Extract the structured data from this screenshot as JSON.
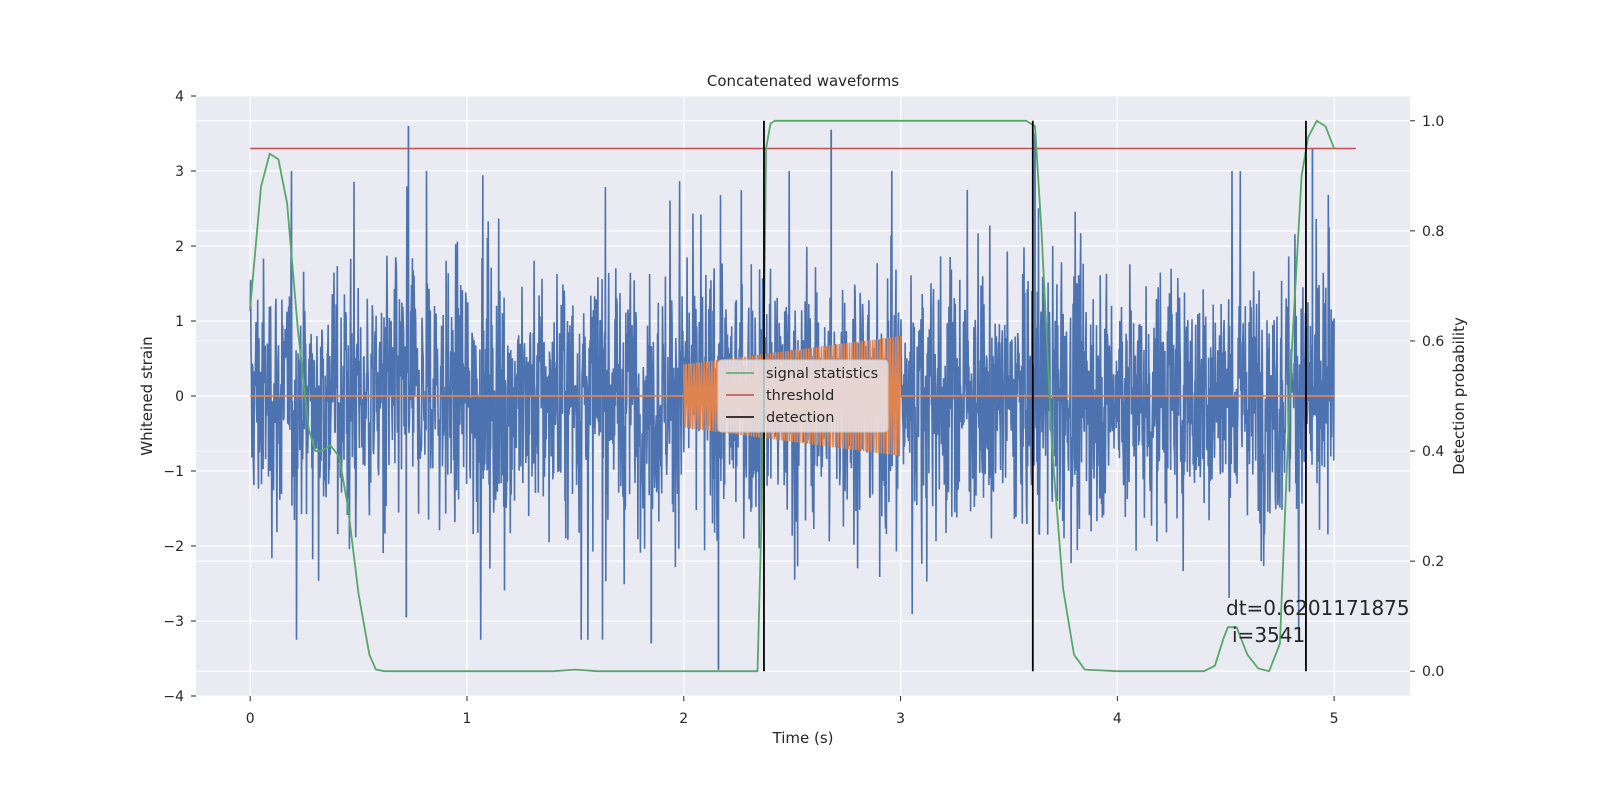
{
  "chart_data": {
    "type": "line",
    "title": "Concatenated waveforms",
    "xlabel": "Time (s)",
    "ylabel_left": "Whitened strain",
    "ylabel_right": "Detection probability",
    "xlim": [
      -0.25,
      5.35
    ],
    "ylim_left": [
      -4,
      4
    ],
    "ylim_right": [
      -0.045,
      1.045
    ],
    "xticks": [
      0,
      1,
      2,
      3,
      4,
      5
    ],
    "yticks_left": [
      -4,
      -3,
      -2,
      -1,
      0,
      1,
      2,
      3,
      4
    ],
    "yticks_right": [
      0.0,
      0.2,
      0.4,
      0.6,
      0.8,
      1.0
    ],
    "xtick_labels": [
      "0",
      "1",
      "2",
      "3",
      "4",
      "5"
    ],
    "yticks_left_labels": [
      "−4",
      "−3",
      "−2",
      "−1",
      "0",
      "1",
      "2",
      "3",
      "4"
    ],
    "yticks_right_labels": [
      "0.0",
      "0.2",
      "0.4",
      "0.6",
      "0.8",
      "1.0"
    ],
    "grid": true,
    "legend_position": "center",
    "colors": {
      "strain": "#4c72b0",
      "injection": "#dd8452",
      "signal_statistics": "#55a868",
      "threshold": "#c44e52",
      "detection": "#000000",
      "axes_bg": "#eaeaf2",
      "grid": "#ffffff"
    },
    "noise": {
      "x_range": [
        0,
        5
      ],
      "amplitude_envelope": [
        -3.65,
        3.6
      ],
      "typical_band": [
        -1.2,
        1.2
      ],
      "peaks": [
        {
          "x": 0.73,
          "y": 3.6
        },
        {
          "x": 2.16,
          "y": -3.65
        },
        {
          "x": 2.68,
          "y": 3.55
        },
        {
          "x": 3.62,
          "y": 3.5
        },
        {
          "x": 4.9,
          "y": 3.3
        },
        {
          "x": 0.72,
          "y": -2.95
        },
        {
          "x": 1.85,
          "y": -3.3
        }
      ]
    },
    "injection": {
      "x_start": 2.0,
      "x_end": 3.0,
      "amplitude_start": 0.42,
      "amplitude_end": 0.8,
      "baseline": 0.0
    },
    "series": [
      {
        "name": "signal statistics",
        "axis": "right",
        "x": [
          0.0,
          0.05,
          0.09,
          0.13,
          0.17,
          0.22,
          0.27,
          0.3,
          0.33,
          0.37,
          0.41,
          0.45,
          0.5,
          0.55,
          0.58,
          0.62,
          1.0,
          1.4,
          1.5,
          1.6,
          2.0,
          2.34,
          2.36,
          2.38,
          2.4,
          2.42,
          2.5,
          3.0,
          3.5,
          3.58,
          3.62,
          3.65,
          3.7,
          3.75,
          3.8,
          3.85,
          4.0,
          4.4,
          4.45,
          4.49,
          4.51,
          4.55,
          4.6,
          4.65,
          4.7,
          4.75,
          4.8,
          4.85,
          4.88,
          4.92,
          4.96,
          5.0
        ],
        "y": [
          0.66,
          0.88,
          0.94,
          0.93,
          0.85,
          0.62,
          0.44,
          0.4,
          0.4,
          0.41,
          0.39,
          0.3,
          0.14,
          0.03,
          0.003,
          0.0,
          0.0,
          0.0,
          0.003,
          0.0,
          0.0,
          0.0,
          0.3,
          0.95,
          0.995,
          1.0,
          1.0,
          1.0,
          1.0,
          1.0,
          0.99,
          0.8,
          0.4,
          0.15,
          0.03,
          0.003,
          0.0,
          0.0,
          0.01,
          0.06,
          0.08,
          0.08,
          0.03,
          0.005,
          0.0,
          0.05,
          0.55,
          0.9,
          0.97,
          1.0,
          0.99,
          0.95
        ]
      },
      {
        "name": "threshold",
        "axis": "left",
        "x": [
          0.0,
          5.1
        ],
        "y": [
          3.3,
          3.3
        ]
      }
    ],
    "detections": {
      "name": "detection",
      "x": [
        2.37,
        3.61,
        4.87
      ],
      "y_range_right": [
        0.0,
        1.0
      ]
    },
    "annotation": {
      "line1": "dt=0.6201171875",
      "line2": "i=3541",
      "x": 4.51,
      "y_left": -2.95
    },
    "legend": [
      "signal statistics",
      "threshold",
      "detection"
    ]
  }
}
